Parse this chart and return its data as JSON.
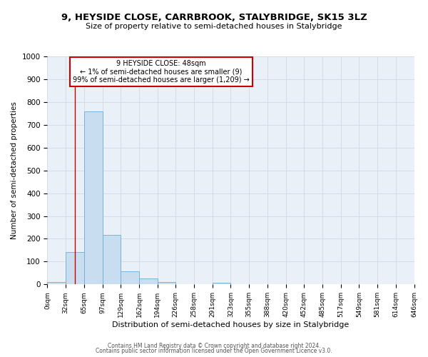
{
  "title": "9, HEYSIDE CLOSE, CARRBROOK, STALYBRIDGE, SK15 3LZ",
  "subtitle": "Size of property relative to semi-detached houses in Stalybridge",
  "xlabel": "Distribution of semi-detached houses by size in Stalybridge",
  "ylabel": "Number of semi-detached properties",
  "bar_color": "#c8ddf0",
  "bar_edge_color": "#6aaed6",
  "grid_color": "#d0d8e8",
  "annotation_box_color": "#cc0000",
  "annotation_line1": "9 HEYSIDE CLOSE: 48sqm",
  "annotation_line2": "← 1% of semi-detached houses are smaller (9)",
  "annotation_line3": "99% of semi-detached houses are larger (1,209) →",
  "red_line_x": 48,
  "ylim": [
    0,
    1000
  ],
  "yticks": [
    0,
    100,
    200,
    300,
    400,
    500,
    600,
    700,
    800,
    900,
    1000
  ],
  "bin_edges": [
    0,
    32,
    65,
    97,
    129,
    162,
    194,
    226,
    258,
    291,
    323,
    355,
    388,
    420,
    452,
    485,
    517,
    549,
    581,
    614,
    646
  ],
  "bin_labels": [
    "0sqm",
    "32sqm",
    "65sqm",
    "97sqm",
    "129sqm",
    "162sqm",
    "194sqm",
    "226sqm",
    "258sqm",
    "291sqm",
    "323sqm",
    "355sqm",
    "388sqm",
    "420sqm",
    "452sqm",
    "485sqm",
    "517sqm",
    "549sqm",
    "581sqm",
    "614sqm",
    "646sqm"
  ],
  "bar_heights": [
    9,
    143,
    760,
    218,
    57,
    25,
    10,
    0,
    0,
    8,
    0,
    0,
    0,
    0,
    0,
    0,
    0,
    0,
    0,
    0
  ],
  "footer1": "Contains HM Land Registry data © Crown copyright and database right 2024.",
  "footer2": "Contains public sector information licensed under the Open Government Licence v3.0."
}
